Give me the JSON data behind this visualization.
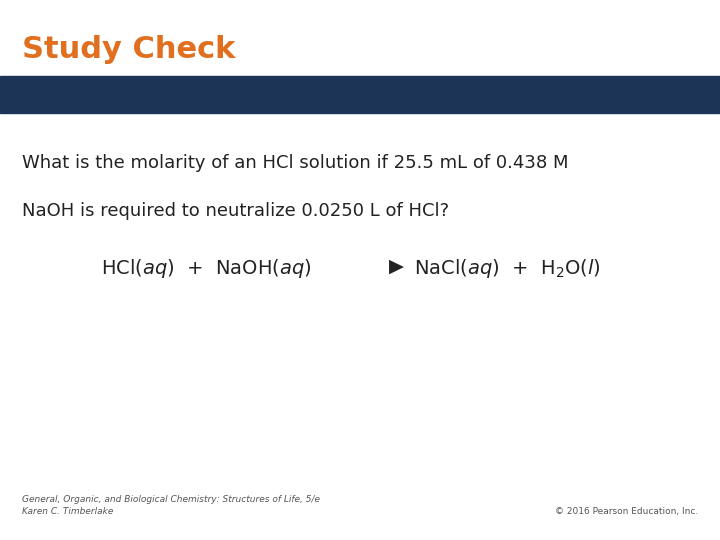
{
  "title": "Study Check",
  "title_color": "#E07020",
  "title_fontsize": 22,
  "banner_color": "#1C3557",
  "body_text_line1": "What is the molarity of an HCl solution if 25.5 mL of 0.438 M",
  "body_text_line2": "NaOH is required to neutralize 0.0250 L of HCl?",
  "body_fontsize": 13,
  "body_text_color": "#222222",
  "equation_fontsize": 14,
  "equation_color": "#222222",
  "footer_left_line1": "General, Organic, and Biological Chemistry: Structures of Life, 5/e",
  "footer_left_line2": "Karen C. Timberlake",
  "footer_right": "© 2016 Pearson Education, Inc.",
  "footer_fontsize": 6.5,
  "footer_color": "#555555",
  "background_color": "#ffffff"
}
